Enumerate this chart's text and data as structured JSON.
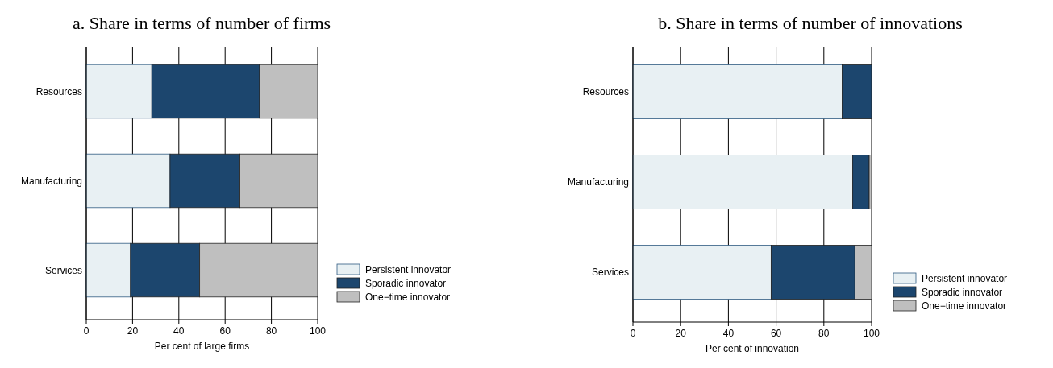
{
  "chart_data": [
    {
      "type": "bar",
      "orientation": "horizontal",
      "stacked": true,
      "title": "a. Share in terms of number of firms",
      "xlabel": "Per cent of large firms",
      "categories": [
        "Resources",
        "Manufacturing",
        "Services"
      ],
      "series": [
        {
          "name": "Persistent innovator",
          "color": "#e8f0f3",
          "values": [
            28.3,
            36.2,
            19.1
          ]
        },
        {
          "name": "Sporadic innovator",
          "color": "#1c466e",
          "values": [
            46.6,
            30.2,
            29.9
          ]
        },
        {
          "name": "One−time innovator",
          "color": "#bfbfbf",
          "values": [
            25.1,
            33.6,
            51.0
          ]
        }
      ],
      "xlim": [
        0,
        100
      ],
      "xticks": [
        0,
        20,
        40,
        60,
        80,
        100
      ],
      "grid": "x",
      "legend": "right"
    },
    {
      "type": "bar",
      "orientation": "horizontal",
      "stacked": true,
      "title": "b. Share in terms of number of innovations",
      "xlabel": "Per cent of innovation",
      "categories": [
        "Resources",
        "Manufacturing",
        "Services"
      ],
      "series": [
        {
          "name": "Persistent innovator",
          "color": "#e8f0f3",
          "values": [
            87.7,
            92.1,
            57.9
          ]
        },
        {
          "name": "Sporadic innovator",
          "color": "#1c466e",
          "values": [
            12.3,
            6.9,
            35.1
          ]
        },
        {
          "name": "One−time innovator",
          "color": "#bfbfbf",
          "values": [
            0,
            1.0,
            7.0
          ]
        }
      ],
      "xlim": [
        0,
        100
      ],
      "xticks": [
        0,
        20,
        40,
        60,
        80,
        100
      ],
      "grid": "x",
      "legend": "right"
    }
  ]
}
